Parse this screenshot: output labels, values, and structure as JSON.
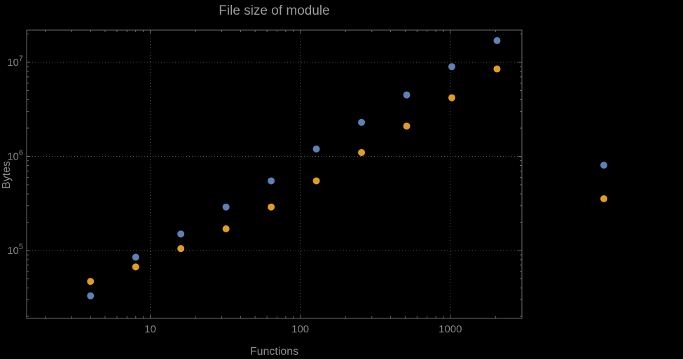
{
  "window": {
    "background": "#000000"
  },
  "colors": {
    "background": "#000000",
    "frame": "#6e6e6e",
    "grid": "#565656",
    "tick_label": "#858585",
    "title": "#9b9b9b",
    "axis_label": "#8d8d8d",
    "series_blue": "#5e81b5",
    "series_orange": "#e19c24"
  },
  "chart_data": {
    "type": "scatter",
    "title": "File size of module",
    "xlabel": "Functions",
    "ylabel": "Bytes",
    "x_scale": "log",
    "y_scale": "log",
    "xlim": [
      1.5,
      3000
    ],
    "ylim": [
      19000,
      22000000
    ],
    "grid": true,
    "x_ticks": [
      {
        "value": 10,
        "label": "10"
      },
      {
        "value": 100,
        "label": "100"
      },
      {
        "value": 1000,
        "label": "1000"
      }
    ],
    "y_ticks": [
      {
        "value": 100000,
        "label_base": "10",
        "label_exp": "5"
      },
      {
        "value": 1000000,
        "label_base": "10",
        "label_exp": "6"
      },
      {
        "value": 10000000,
        "label_base": "10",
        "label_exp": "7"
      }
    ],
    "series": [
      {
        "name": "series-blue",
        "color": "#5e81b5",
        "x": [
          4,
          8,
          16,
          32,
          64,
          128,
          256,
          512,
          1024,
          2048
        ],
        "y": [
          33000,
          85000,
          150000,
          290000,
          550000,
          1200000,
          2300000,
          4500000,
          9000000,
          17000000
        ]
      },
      {
        "name": "series-orange",
        "color": "#e19c24",
        "x": [
          4,
          8,
          16,
          32,
          64,
          128,
          256,
          512,
          1024,
          2048
        ],
        "y": [
          47000,
          67000,
          105000,
          170000,
          290000,
          550000,
          1100000,
          2100000,
          4200000,
          8500000
        ]
      }
    ],
    "legend": {
      "position": "right",
      "markers": [
        {
          "name": "legend-marker-blue",
          "color": "#5e81b5",
          "label": ""
        },
        {
          "name": "legend-marker-orange",
          "color": "#e19c24",
          "label": ""
        }
      ]
    }
  }
}
